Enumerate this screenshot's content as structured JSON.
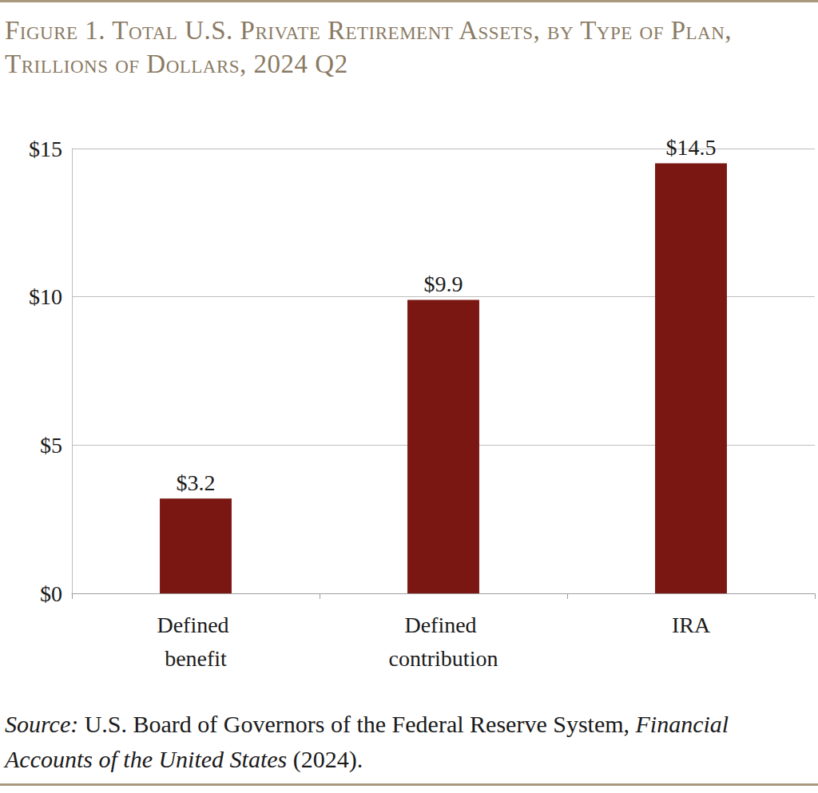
{
  "chart_data": {
    "type": "bar",
    "title": "Figure 1. Total U.S. Private Retirement Assets, by Type of Plan, Trillions of Dollars, 2024 Q2",
    "categories": [
      "Defined benefit",
      "Defined contribution",
      "IRA"
    ],
    "values": [
      3.2,
      9.9,
      14.5
    ],
    "value_labels": [
      "$3.2",
      "$9.9",
      "$14.5"
    ],
    "color": "#7a1712",
    "ylim": [
      0,
      15
    ],
    "yticks": [
      {
        "value": 0,
        "label": "$0"
      },
      {
        "value": 5,
        "label": "$5"
      },
      {
        "value": 10,
        "label": "$10"
      },
      {
        "value": 15,
        "label": "$15"
      }
    ],
    "grid": true,
    "data_labels": true,
    "source": [
      "Source:",
      " U.S. Board of Governors of the Federal Reserve System, ",
      "Financial Accounts of the United States",
      " (2024)."
    ]
  }
}
